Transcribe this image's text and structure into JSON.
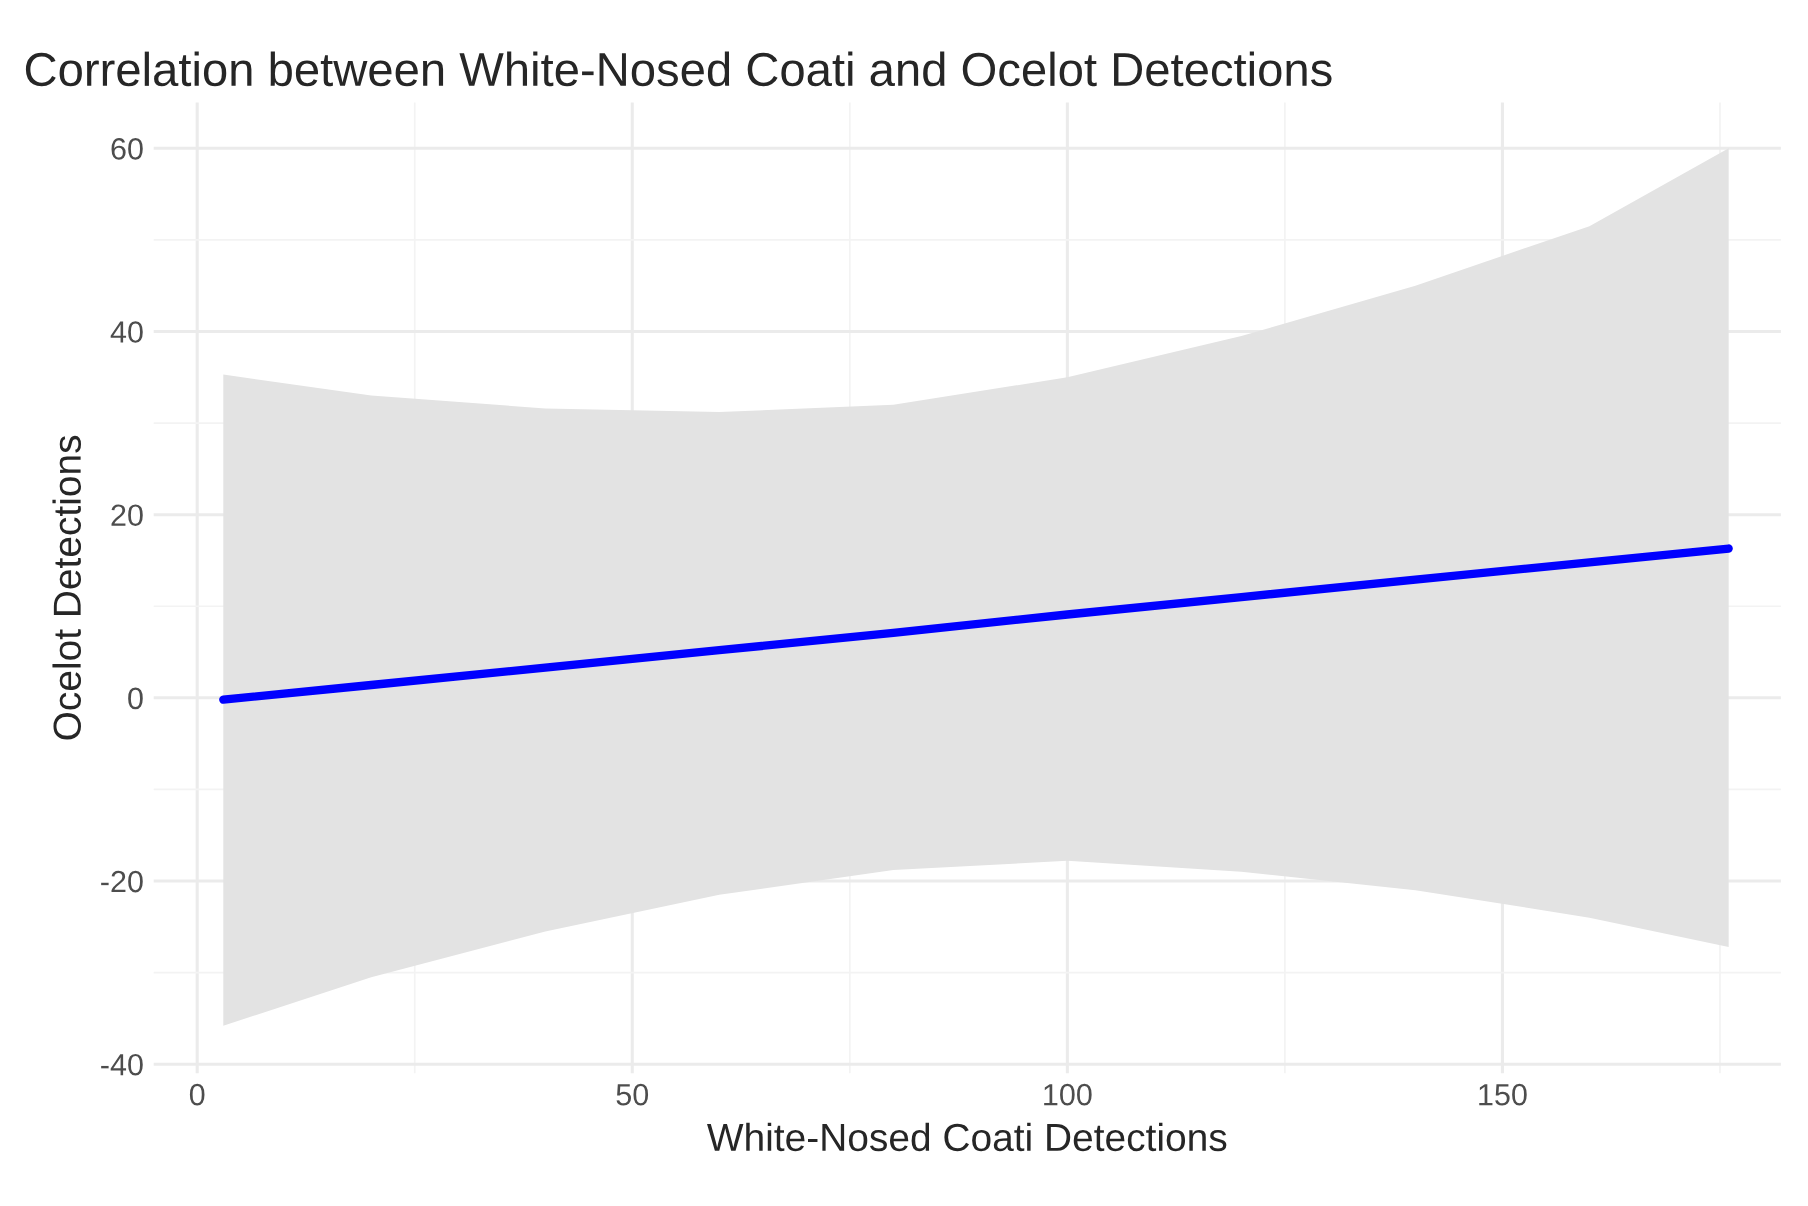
{
  "chart_data": {
    "type": "line",
    "title": "Correlation between White-Nosed Coati and Ocelot Detections",
    "xlabel": "White-Nosed Coati Detections",
    "ylabel": "Ocelot Detections",
    "x": [
      3,
      20,
      40,
      60,
      80,
      100,
      120,
      140,
      160,
      176
    ],
    "series": [
      {
        "color": "#0000ff",
        "values": [
          -0.2,
          1.4,
          3.3,
          5.2,
          7.1,
          9.1,
          11.0,
          12.9,
          14.8,
          16.3
        ],
        "lower": [
          -35.8,
          -30.5,
          -25.5,
          -21.5,
          -18.8,
          -17.8,
          -19,
          -21,
          -24,
          -27.2
        ],
        "upper": [
          35.3,
          33.0,
          31.6,
          31.2,
          32.0,
          35,
          39.5,
          45,
          51.5,
          60
        ]
      }
    ],
    "xlim": [
      -5,
      182
    ],
    "ylim": [
      -41,
      65
    ],
    "xticks": [
      0,
      50,
      100,
      150
    ],
    "yticks": [
      -40,
      -20,
      0,
      20,
      40,
      60
    ],
    "grid": true,
    "marker": "none",
    "line_style": "solid"
  }
}
